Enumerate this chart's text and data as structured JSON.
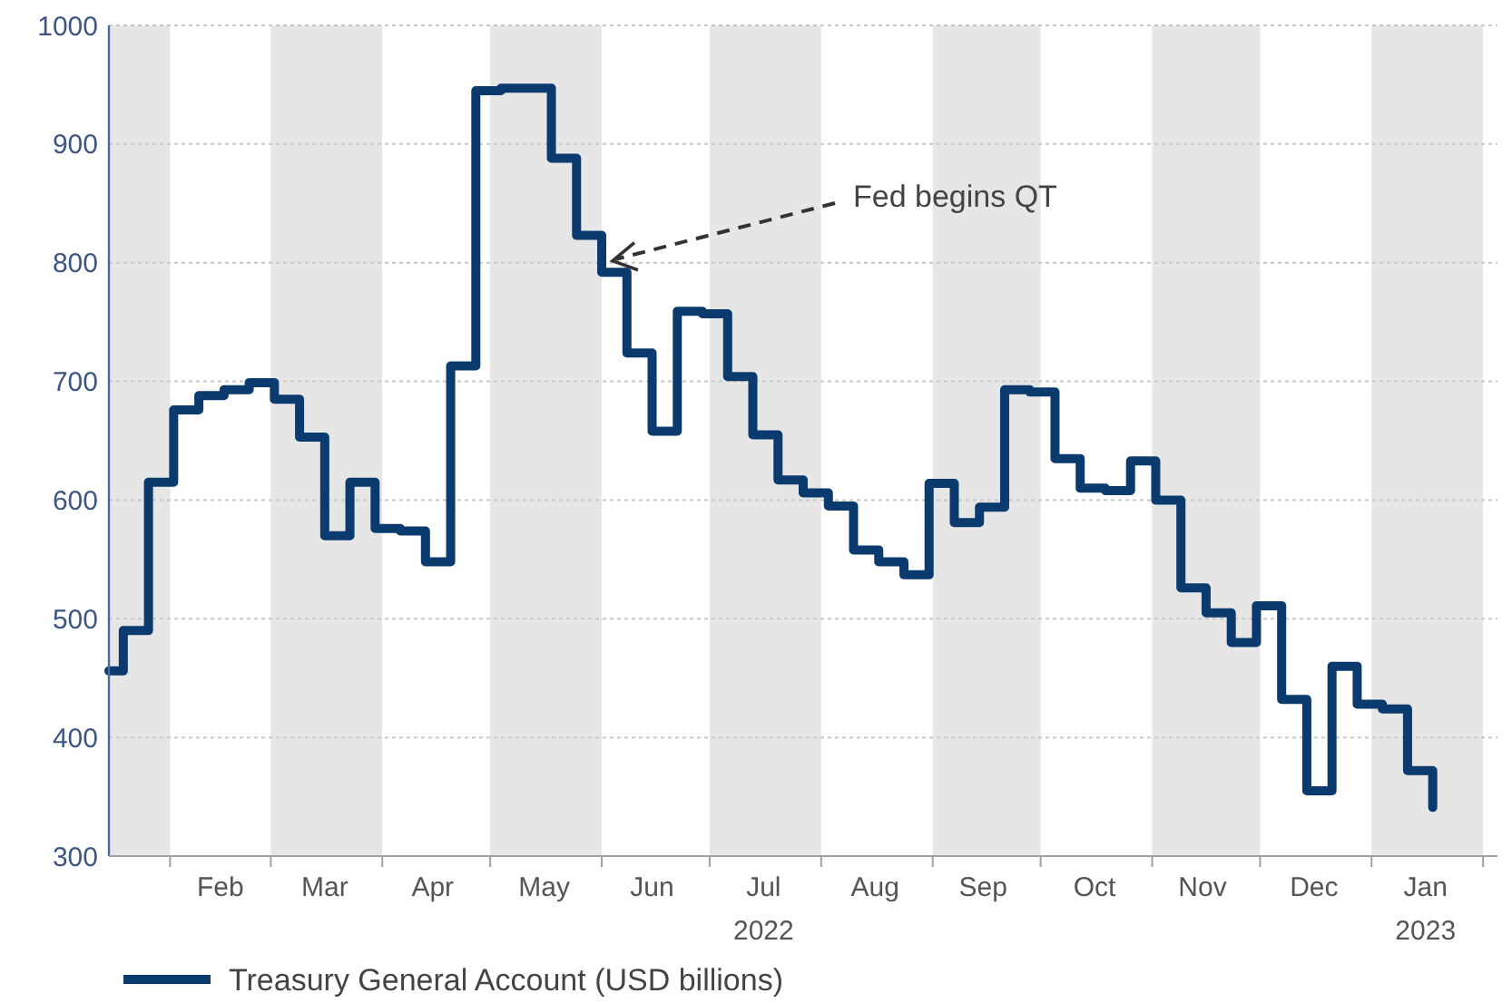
{
  "chart_data": {
    "type": "step",
    "x": [
      "2022-01-15",
      "2022-01-19",
      "2022-01-26",
      "2022-02-02",
      "2022-02-09",
      "2022-02-16",
      "2022-02-23",
      "2022-03-02",
      "2022-03-09",
      "2022-03-16",
      "2022-03-23",
      "2022-03-30",
      "2022-04-06",
      "2022-04-13",
      "2022-04-20",
      "2022-04-27",
      "2022-05-04",
      "2022-05-11",
      "2022-05-18",
      "2022-05-25",
      "2022-06-01",
      "2022-06-08",
      "2022-06-15",
      "2022-06-22",
      "2022-06-29",
      "2022-07-06",
      "2022-07-13",
      "2022-07-20",
      "2022-07-27",
      "2022-08-03",
      "2022-08-10",
      "2022-08-17",
      "2022-08-24",
      "2022-08-31",
      "2022-09-07",
      "2022-09-14",
      "2022-09-21",
      "2022-09-28",
      "2022-10-05",
      "2022-10-12",
      "2022-10-19",
      "2022-10-26",
      "2022-11-02",
      "2022-11-09",
      "2022-11-16",
      "2022-11-23",
      "2022-11-30",
      "2022-12-07",
      "2022-12-14",
      "2022-12-21",
      "2022-12-28",
      "2023-01-04",
      "2023-01-11",
      "2023-01-18"
    ],
    "series": [
      {
        "name": "Treasury General Account (USD billions)",
        "color": "#0b3a6e",
        "values": [
          456,
          490,
          615,
          676,
          688,
          693,
          699,
          685,
          653,
          570,
          615,
          576,
          574,
          548,
          713,
          945,
          947,
          947,
          888,
          823,
          792,
          724,
          658,
          759,
          757,
          704,
          655,
          617,
          606,
          595,
          558,
          548,
          537,
          614,
          581,
          594,
          693,
          691,
          635,
          610,
          608,
          633,
          600,
          526,
          505,
          480,
          511,
          432,
          355,
          460,
          428,
          424,
          372,
          341
        ]
      }
    ],
    "xlim": [
      "2022-01-15",
      "2023-02-05"
    ],
    "xticks": [
      {
        "value": "2022-02-01",
        "label": null
      },
      {
        "value": "2022-02-15",
        "label": "Feb"
      },
      {
        "value": "2022-03-01",
        "label": null
      },
      {
        "value": "2022-03-16",
        "label": "Mar"
      },
      {
        "value": "2022-04-01",
        "label": null
      },
      {
        "value": "2022-04-15",
        "label": "Apr"
      },
      {
        "value": "2022-05-01",
        "label": null
      },
      {
        "value": "2022-05-16",
        "label": "May"
      },
      {
        "value": "2022-06-01",
        "label": null
      },
      {
        "value": "2022-06-15",
        "label": "Jun"
      },
      {
        "value": "2022-07-01",
        "label": null
      },
      {
        "value": "2022-07-16",
        "label": "Jul\n2022"
      },
      {
        "value": "2022-08-01",
        "label": null
      },
      {
        "value": "2022-08-16",
        "label": "Aug"
      },
      {
        "value": "2022-09-01",
        "label": null
      },
      {
        "value": "2022-09-15",
        "label": "Sep"
      },
      {
        "value": "2022-10-01",
        "label": null
      },
      {
        "value": "2022-10-16",
        "label": "Oct"
      },
      {
        "value": "2022-11-01",
        "label": null
      },
      {
        "value": "2022-11-15",
        "label": "Nov"
      },
      {
        "value": "2022-12-01",
        "label": null
      },
      {
        "value": "2022-12-16",
        "label": "Dec"
      },
      {
        "value": "2023-01-01",
        "label": null
      },
      {
        "value": "2023-01-16",
        "label": "Jan\n2023"
      },
      {
        "value": "2023-02-01",
        "label": null
      }
    ],
    "ylim": [
      300,
      1000
    ],
    "yticks": [
      300,
      400,
      500,
      600,
      700,
      800,
      900,
      1000
    ],
    "grid": "y",
    "legend": "bottom",
    "line_style": "solid",
    "marker": "none",
    "bands": [
      {
        "axis": "x",
        "from": "2022-01-15",
        "to": "2022-02-01",
        "color": "#e6e6e6"
      },
      {
        "axis": "x",
        "from": "2022-03-01",
        "to": "2022-04-01",
        "color": "#e6e6e6"
      },
      {
        "axis": "x",
        "from": "2022-05-01",
        "to": "2022-06-01",
        "color": "#e6e6e6"
      },
      {
        "axis": "x",
        "from": "2022-07-01",
        "to": "2022-08-01",
        "color": "#e6e6e6"
      },
      {
        "axis": "x",
        "from": "2022-09-01",
        "to": "2022-10-01",
        "color": "#e6e6e6"
      },
      {
        "axis": "x",
        "from": "2022-11-01",
        "to": "2022-12-01",
        "color": "#e6e6e6"
      },
      {
        "axis": "x",
        "from": "2023-01-01",
        "to": "2023-02-01",
        "color": "#e6e6e6"
      }
    ],
    "annotations": [
      {
        "text": "Fed begins QT",
        "x": "2022-06-02",
        "y": 800
      }
    ]
  }
}
